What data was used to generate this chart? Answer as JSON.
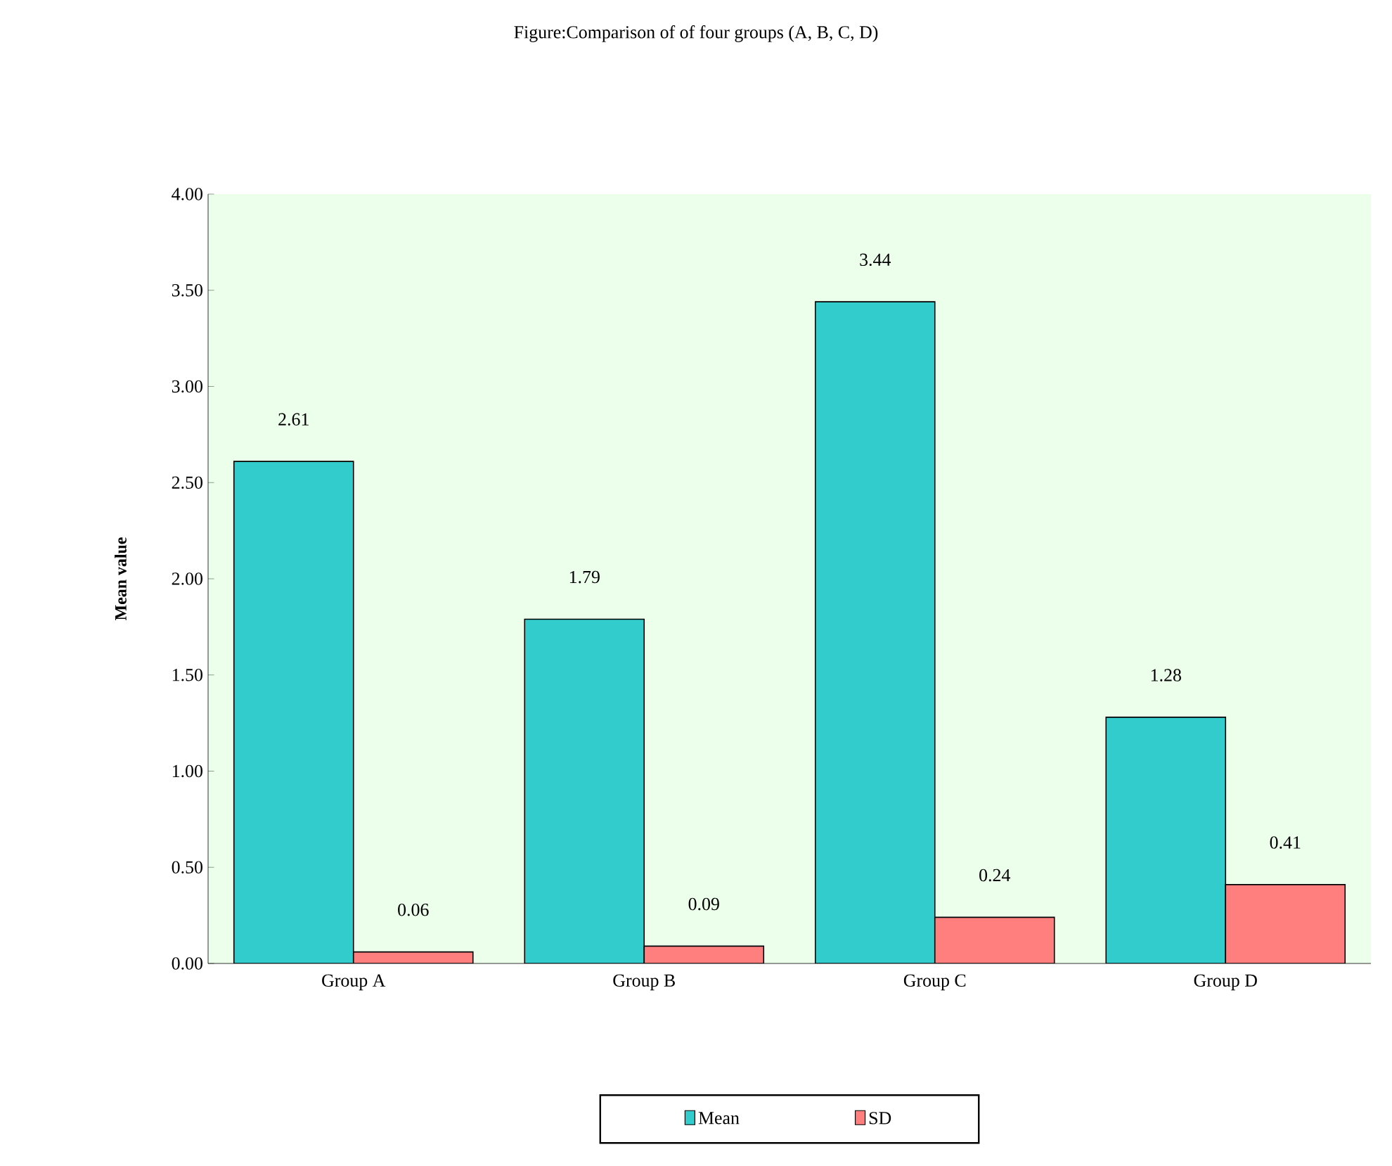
{
  "chart_data": {
    "type": "bar",
    "title": "Figure:Comparison of of four groups (A, B, C, D)",
    "ylabel": "Mean value",
    "categories": [
      "Group A",
      "Group B",
      "Group C",
      "Group D"
    ],
    "series": [
      {
        "name": "Mean",
        "color": "#33cccc",
        "values": [
          2.61,
          1.79,
          3.44,
          1.28
        ]
      },
      {
        "name": "SD",
        "color": "#ff7f7f",
        "values": [
          0.06,
          0.09,
          0.24,
          0.41
        ]
      }
    ],
    "ylim": [
      0,
      4
    ],
    "yticks": [
      {
        "value": 0,
        "label": "0.00"
      },
      {
        "value": 0.5,
        "label": "0.50"
      },
      {
        "value": 1,
        "label": "1.00"
      },
      {
        "value": 1.5,
        "label": "1.50"
      },
      {
        "value": 2,
        "label": "2.00"
      },
      {
        "value": 2.5,
        "label": "2.50"
      },
      {
        "value": 3,
        "label": "3.00"
      },
      {
        "value": 3.5,
        "label": "3.50"
      },
      {
        "value": 4,
        "label": "4.00"
      }
    ],
    "data_labels": true,
    "legend": "bottom",
    "grid": false
  }
}
